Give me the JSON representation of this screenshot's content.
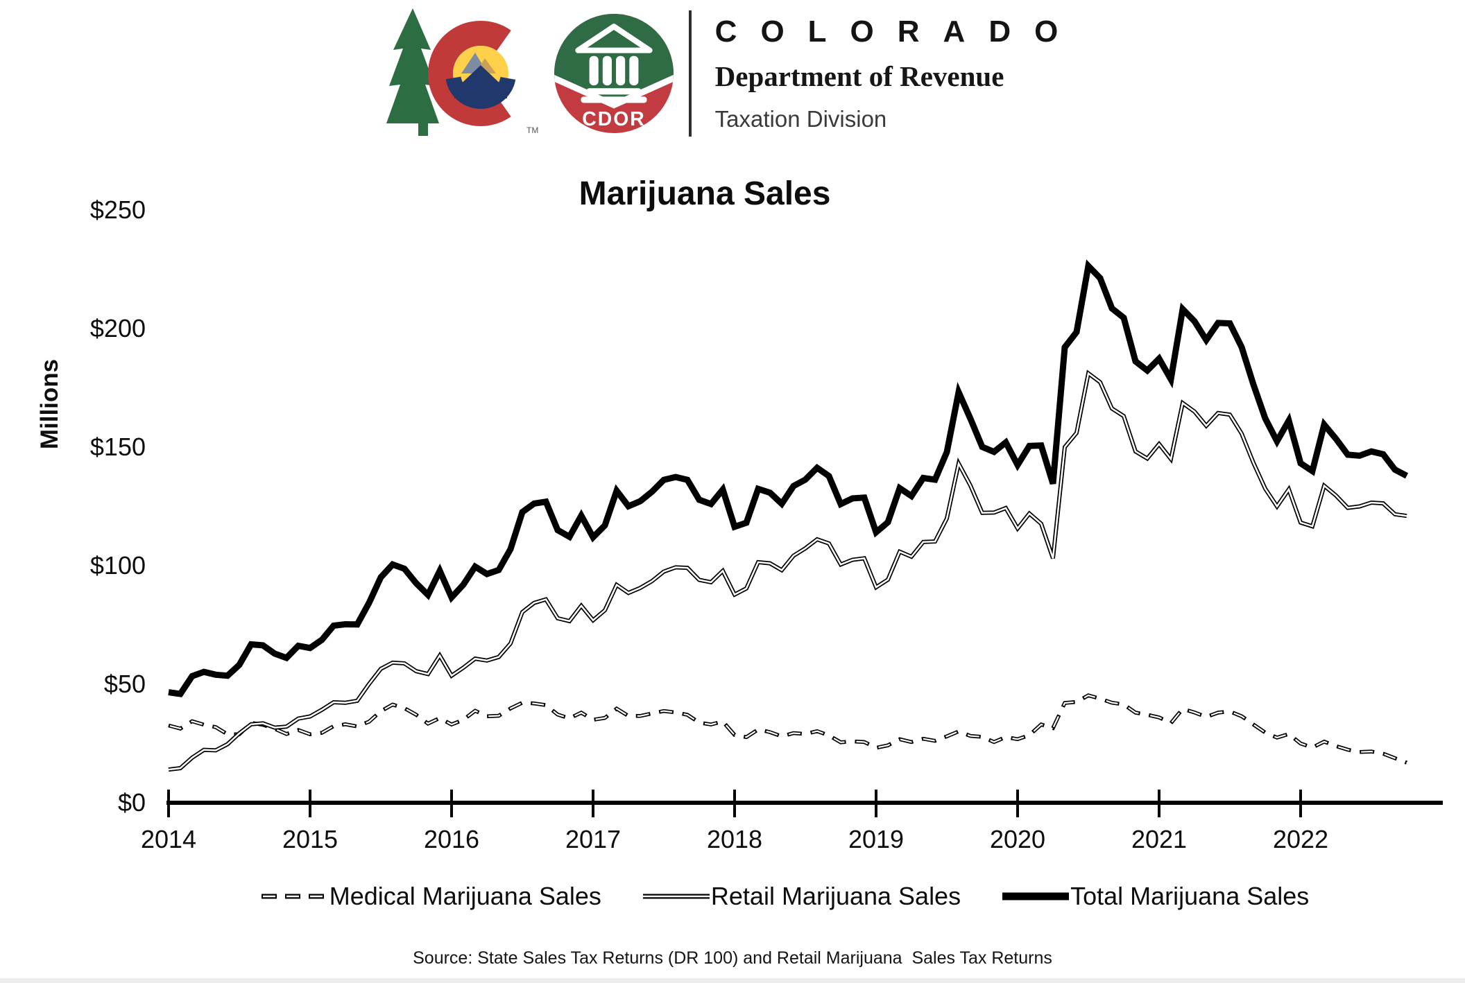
{
  "header": {
    "brand_title": "COLORADO",
    "brand_subtitle": "Department of Revenue",
    "brand_division": "Taxation Division",
    "cdor_badge_text": "CDOR",
    "trademark": "TM",
    "colors": {
      "state_red": "#c13a3a",
      "state_yellow": "#ffd04a",
      "state_navy": "#20386b",
      "pine_green": "#2c6e41",
      "cdor_green": "#2f6b45",
      "cdor_red": "#c23b40"
    }
  },
  "chart": {
    "title": "Marijuana Sales",
    "y_axis_title": "Millions",
    "y_tick_labels": [
      "$250",
      "$200",
      "$150",
      "$100",
      "$50",
      "$0"
    ],
    "x_tick_labels": [
      "2014",
      "2015",
      "2016",
      "2017",
      "2018",
      "2019",
      "2020",
      "2021",
      "2022"
    ],
    "legend": [
      {
        "label": "Medical Marijuana Sales",
        "style": "dashed"
      },
      {
        "label": "Retail Marijuana Sales",
        "style": "double"
      },
      {
        "label": "Total Marijuana Sales",
        "style": "thick"
      }
    ],
    "source": "Source: State Sales Tax Returns (DR 100) and Retail Marijuana  Sales Tax Returns",
    "line_color": "#000000"
  },
  "chart_data": {
    "type": "line",
    "title": "Marijuana Sales",
    "ylabel": "Millions",
    "unit": "USD millions",
    "frequency": "monthly",
    "x_start": "2014-01",
    "x_end": "2022-10",
    "ylim": [
      0,
      250
    ],
    "y_tick_step": 50,
    "grid": false,
    "legend_position": "bottom",
    "x_tick_years": [
      2014,
      2015,
      2016,
      2017,
      2018,
      2019,
      2020,
      2021,
      2022
    ],
    "series": [
      {
        "name": "Medical Marijuana Sales",
        "line_style": "dashed-outline",
        "values": [
          32.6,
          31.3,
          34.4,
          32.9,
          31.9,
          28.9,
          28.9,
          33.7,
          32.9,
          31.2,
          29.0,
          30.7,
          28.9,
          29.5,
          32.3,
          33.1,
          32.2,
          34.2,
          38.6,
          41.4,
          39.9,
          37.1,
          33.4,
          35.7,
          33.0,
          35.0,
          38.8,
          36.5,
          36.7,
          39.8,
          42.2,
          41.9,
          41.2,
          37.2,
          35.6,
          38.0,
          35.0,
          35.8,
          39.7,
          36.6,
          36.6,
          37.7,
          38.7,
          38.1,
          37.1,
          33.8,
          33.0,
          34.3,
          28.6,
          27.7,
          30.9,
          29.8,
          28.0,
          29.4,
          29.0,
          30.2,
          28.4,
          25.5,
          25.9,
          25.6,
          23.2,
          24.2,
          26.8,
          25.6,
          27.0,
          26.1,
          28.0,
          30.1,
          28.2,
          27.8,
          25.6,
          27.7,
          26.8,
          28.5,
          33.0,
          31.5,
          42.1,
          42.5,
          45.3,
          43.9,
          42.2,
          41.5,
          38.0,
          37.1,
          36.0,
          33.6,
          39.6,
          38.1,
          36.2,
          38.0,
          38.5,
          36.5,
          33.0,
          29.6,
          27.5,
          29.0,
          25.0,
          23.3,
          25.8,
          23.9,
          22.4,
          21.4,
          21.6,
          20.7,
          18.8,
          16.9
        ]
      },
      {
        "name": "Retail Marijuana Sales",
        "line_style": "double-thin",
        "values": [
          14.0,
          14.6,
          19.0,
          22.3,
          22.1,
          24.7,
          29.3,
          33.1,
          33.5,
          31.7,
          32.1,
          35.5,
          36.4,
          39.2,
          42.4,
          42.2,
          43.0,
          50.1,
          56.5,
          59.1,
          58.8,
          55.5,
          54.3,
          62.1,
          53.6,
          57.0,
          60.8,
          60.0,
          61.5,
          67.2,
          80.4,
          84.3,
          85.8,
          77.8,
          76.6,
          83.1,
          77.0,
          81.2,
          91.9,
          88.5,
          90.6,
          93.5,
          97.5,
          99.3,
          99.1,
          94.0,
          93.0,
          97.8,
          87.8,
          90.4,
          101.5,
          101.0,
          98.1,
          104.2,
          107.3,
          111.1,
          109.4,
          100.5,
          102.5,
          103.1,
          90.9,
          94.1,
          105.9,
          103.8,
          110.0,
          110.2,
          119.9,
          143.1,
          133.8,
          122.3,
          122.4,
          124.3,
          115.7,
          122.0,
          117.7,
          103.1,
          150.0,
          156.0,
          181.1,
          177.4,
          166.3,
          163.1,
          148.2,
          145.2,
          151.3,
          145.0,
          168.6,
          165.0,
          159.0,
          164.4,
          163.7,
          155.7,
          143.4,
          132.5,
          125.0,
          132.2,
          118.2,
          116.6,
          133.7,
          129.6,
          124.4,
          125.0,
          126.6,
          126.3,
          121.7,
          121.0
        ]
      },
      {
        "name": "Total Marijuana Sales",
        "line_style": "thick-solid",
        "values": [
          46.6,
          45.9,
          53.4,
          55.2,
          54.0,
          53.6,
          58.2,
          66.8,
          66.4,
          62.9,
          61.1,
          66.2,
          65.3,
          68.7,
          74.7,
          75.3,
          75.2,
          84.3,
          95.1,
          100.5,
          98.7,
          92.6,
          87.7,
          97.8,
          86.6,
          92.0,
          99.6,
          96.5,
          98.2,
          107.0,
          122.6,
          126.2,
          127.0,
          115.0,
          112.2,
          121.1,
          112.0,
          117.0,
          131.6,
          125.1,
          127.2,
          131.2,
          136.2,
          137.4,
          136.2,
          127.8,
          126.0,
          132.1,
          116.4,
          118.1,
          132.4,
          130.8,
          126.1,
          133.6,
          136.3,
          141.3,
          137.8,
          126.0,
          128.4,
          128.7,
          114.1,
          118.3,
          132.7,
          129.4,
          137.0,
          136.3,
          147.9,
          173.2,
          162.0,
          150.1,
          148.0,
          152.0,
          142.5,
          150.5,
          150.7,
          134.6,
          192.1,
          198.5,
          226.4,
          221.3,
          208.5,
          204.6,
          186.2,
          182.3,
          187.3,
          178.6,
          208.2,
          203.1,
          195.2,
          202.4,
          202.2,
          192.2,
          176.4,
          162.1,
          152.5,
          161.2,
          143.2,
          139.9,
          159.5,
          153.5,
          146.8,
          146.4,
          148.2,
          147.0,
          140.5,
          137.9
        ]
      }
    ]
  }
}
